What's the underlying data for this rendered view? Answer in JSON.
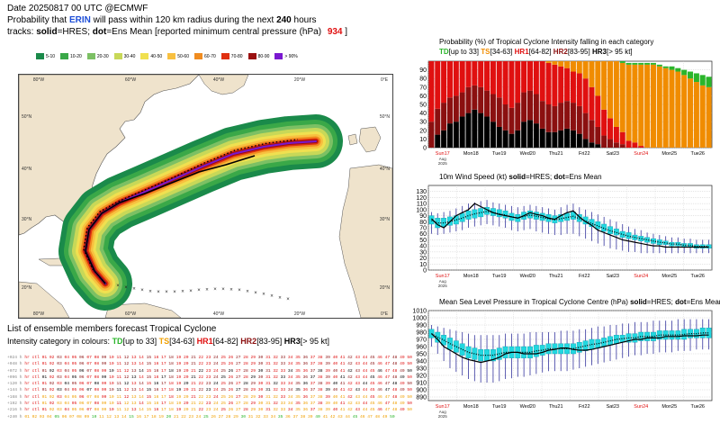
{
  "header": {
    "date_line": "Date 20250817 00 UTC   @ECMWF",
    "prob_prefix": "Probability that ",
    "storm_name": "ERIN",
    "prob_middle": " will pass within 120 km radius during the next ",
    "hours": "240",
    "prob_suffix": " hours",
    "tracks_prefix": "tracks: ",
    "solid_label": "solid",
    "solid_desc": "=HRES; ",
    "dot_label": "dot",
    "dot_desc": "=Ens Mean [reported minimum central pressure (hPa) ",
    "pressure": "934",
    "pressure_suffix": " ]"
  },
  "prob_legend": [
    {
      "label": "5-10",
      "color": "#1a8a4a"
    },
    {
      "label": "10-20",
      "color": "#3aa848"
    },
    {
      "label": "20-30",
      "color": "#7cc064"
    },
    {
      "label": "30-40",
      "color": "#c8d858"
    },
    {
      "label": "40-50",
      "color": "#f0e050"
    },
    {
      "label": "50-60",
      "color": "#f8c040"
    },
    {
      "label": "60-70",
      "color": "#f08c20"
    },
    {
      "label": "70-80",
      "color": "#e03010"
    },
    {
      "label": "80-90",
      "color": "#9a1010"
    },
    {
      "label": "> 90%",
      "color": "#7a18d0"
    }
  ],
  "map": {
    "lon_labels_top": [
      "80°W",
      "60°W",
      "40°W",
      "20°W",
      "0°E"
    ],
    "lon_labels_bottom": [
      "80°W",
      "60°W",
      "40°W",
      "20°W",
      "0°E"
    ],
    "lat_labels": [
      "50°N",
      "40°N",
      "30°N",
      "20°N"
    ]
  },
  "list": {
    "title": "List of ensemble members forecast Tropical Cyclone",
    "intensity_prefix": "Intensity category in colours: ",
    "td": "TD",
    "td_desc": "[up to 33] ",
    "ts": "TS",
    "ts_desc": "[34-63] ",
    "hr1": "HR1",
    "hr1_desc": "[64-82] ",
    "hr2": "HR2",
    "hr2_desc": "[83-95] ",
    "hr3": "HR3",
    "hr3_desc": "[> 95 kt]"
  },
  "ens_rows": [
    {
      "label": "+024 h",
      "hres": "hr",
      "ctl": "ctl",
      "first": 1,
      "last": 50
    },
    {
      "label": "+048 h",
      "hres": "hr",
      "ctl": "ctl",
      "first": 1,
      "last": 50
    },
    {
      "label": "+072 h",
      "hres": "hr",
      "ctl": "ctl",
      "first": 1,
      "last": 50
    },
    {
      "label": "+096 h",
      "hres": "hr",
      "ctl": "ctl",
      "first": 1,
      "last": 50
    },
    {
      "label": "+120 h",
      "hres": "hr",
      "ctl": "ctl",
      "first": 1,
      "last": 50
    },
    {
      "label": "+144 h",
      "hres": "hr",
      "ctl": "ctl",
      "first": 1,
      "last": 50
    },
    {
      "label": "+168 h",
      "hres": "hr",
      "ctl": "ctl",
      "first": 1,
      "last": 50
    },
    {
      "label": "+192 h",
      "hres": "hr",
      "ctl": "ctl",
      "first": 1,
      "last": 50
    },
    {
      "label": "+216 h",
      "hres": "hr",
      "ctl": "ctl",
      "first": 1,
      "last": 50
    },
    {
      "label": "+240 h",
      "hres": "",
      "ctl": "",
      "first": 1,
      "last": 50
    }
  ],
  "chart_data": [
    {
      "type": "bar",
      "title": "Probability (%) of Tropical Cyclone Intensity falling in each category",
      "legend": [
        {
          "name": "TD",
          "desc": "[up to 33]",
          "color": "#2ab52a"
        },
        {
          "name": "TS",
          "desc": "[34-63]",
          "color": "#f08c00"
        },
        {
          "name": "HR1",
          "desc": "[64-82]",
          "color": "#e01010"
        },
        {
          "name": "HR2",
          "desc": "[83-95]",
          "color": "#8b1010"
        },
        {
          "name": "HR3",
          "desc": "[> 95 kt]",
          "color": "#000000"
        }
      ],
      "ylim": [
        0,
        100
      ],
      "yticks": [
        0,
        10,
        20,
        30,
        40,
        50,
        60,
        70,
        80,
        90
      ],
      "x_labels": [
        "Sun17",
        "Mon18",
        "Tue19",
        "Wed20",
        "Thu21",
        "Fri22",
        "Sat23",
        "Sun24",
        "Mon25",
        "Tue26"
      ],
      "x_sublabels": [
        "Aug",
        "2025"
      ],
      "stacks": [
        {
          "hr3": 0,
          "hr2": 30,
          "hr1": 70,
          "ts": 0,
          "td": 0
        },
        {
          "hr3": 15,
          "hr2": 30,
          "hr1": 55,
          "ts": 0,
          "td": 0
        },
        {
          "hr3": 20,
          "hr2": 32,
          "hr1": 48,
          "ts": 0,
          "td": 0
        },
        {
          "hr3": 28,
          "hr2": 30,
          "hr1": 42,
          "ts": 0,
          "td": 0
        },
        {
          "hr3": 30,
          "hr2": 30,
          "hr1": 40,
          "ts": 0,
          "td": 0
        },
        {
          "hr3": 36,
          "hr2": 28,
          "hr1": 36,
          "ts": 0,
          "td": 0
        },
        {
          "hr3": 40,
          "hr2": 30,
          "hr1": 30,
          "ts": 0,
          "td": 0
        },
        {
          "hr3": 44,
          "hr2": 28,
          "hr1": 28,
          "ts": 0,
          "td": 0
        },
        {
          "hr3": 40,
          "hr2": 30,
          "hr1": 30,
          "ts": 0,
          "td": 0
        },
        {
          "hr3": 36,
          "hr2": 30,
          "hr1": 34,
          "ts": 0,
          "td": 0
        },
        {
          "hr3": 30,
          "hr2": 32,
          "hr1": 38,
          "ts": 0,
          "td": 0
        },
        {
          "hr3": 24,
          "hr2": 34,
          "hr1": 42,
          "ts": 0,
          "td": 0
        },
        {
          "hr3": 20,
          "hr2": 30,
          "hr1": 50,
          "ts": 0,
          "td": 0
        },
        {
          "hr3": 16,
          "hr2": 30,
          "hr1": 54,
          "ts": 0,
          "td": 0
        },
        {
          "hr3": 20,
          "hr2": 32,
          "hr1": 48,
          "ts": 0,
          "td": 0
        },
        {
          "hr3": 30,
          "hr2": 34,
          "hr1": 36,
          "ts": 0,
          "td": 0
        },
        {
          "hr3": 32,
          "hr2": 34,
          "hr1": 34,
          "ts": 0,
          "td": 0
        },
        {
          "hr3": 28,
          "hr2": 34,
          "hr1": 38,
          "ts": 0,
          "td": 0
        },
        {
          "hr3": 22,
          "hr2": 32,
          "hr1": 46,
          "ts": 0,
          "td": 0
        },
        {
          "hr3": 18,
          "hr2": 32,
          "hr1": 48,
          "ts": 2,
          "td": 0
        },
        {
          "hr3": 18,
          "hr2": 30,
          "hr1": 48,
          "ts": 4,
          "td": 0
        },
        {
          "hr3": 20,
          "hr2": 32,
          "hr1": 42,
          "ts": 6,
          "td": 0
        },
        {
          "hr3": 22,
          "hr2": 32,
          "hr1": 38,
          "ts": 8,
          "td": 0
        },
        {
          "hr3": 20,
          "hr2": 32,
          "hr1": 36,
          "ts": 12,
          "td": 0
        },
        {
          "hr3": 16,
          "hr2": 32,
          "hr1": 38,
          "ts": 14,
          "td": 0
        },
        {
          "hr3": 10,
          "hr2": 30,
          "hr1": 40,
          "ts": 20,
          "td": 0
        },
        {
          "hr3": 6,
          "hr2": 26,
          "hr1": 38,
          "ts": 30,
          "td": 0
        },
        {
          "hr3": 4,
          "hr2": 20,
          "hr1": 36,
          "ts": 40,
          "td": 0
        },
        {
          "hr3": 0,
          "hr2": 14,
          "hr1": 30,
          "ts": 56,
          "td": 0
        },
        {
          "hr3": 0,
          "hr2": 10,
          "hr1": 24,
          "ts": 66,
          "td": 0
        },
        {
          "hr3": 0,
          "hr2": 6,
          "hr1": 18,
          "ts": 76,
          "td": 0
        },
        {
          "hr3": 0,
          "hr2": 4,
          "hr1": 14,
          "ts": 80,
          "td": 2
        },
        {
          "hr3": 0,
          "hr2": 0,
          "hr1": 8,
          "ts": 88,
          "td": 2
        },
        {
          "hr3": 0,
          "hr2": 0,
          "hr1": 6,
          "ts": 90,
          "td": 2
        },
        {
          "hr3": 0,
          "hr2": 0,
          "hr1": 2,
          "ts": 94,
          "td": 2
        },
        {
          "hr3": 0,
          "hr2": 0,
          "hr1": 0,
          "ts": 96,
          "td": 2
        },
        {
          "hr3": 0,
          "hr2": 0,
          "hr1": 0,
          "ts": 96,
          "td": 2
        },
        {
          "hr3": 0,
          "hr2": 0,
          "hr1": 0,
          "ts": 94,
          "td": 2
        },
        {
          "hr3": 0,
          "hr2": 0,
          "hr1": 0,
          "ts": 92,
          "td": 2
        },
        {
          "hr3": 0,
          "hr2": 0,
          "hr1": 0,
          "ts": 90,
          "td": 4
        },
        {
          "hr3": 0,
          "hr2": 0,
          "hr1": 0,
          "ts": 88,
          "td": 4
        },
        {
          "hr3": 0,
          "hr2": 0,
          "hr1": 0,
          "ts": 84,
          "td": 6
        },
        {
          "hr3": 0,
          "hr2": 0,
          "hr1": 0,
          "ts": 80,
          "td": 8
        },
        {
          "hr3": 0,
          "hr2": 0,
          "hr1": 0,
          "ts": 76,
          "td": 10
        },
        {
          "hr3": 0,
          "hr2": 0,
          "hr1": 0,
          "ts": 72,
          "td": 12
        },
        {
          "hr3": 0,
          "hr2": 0,
          "hr1": 0,
          "ts": 70,
          "td": 12
        }
      ]
    },
    {
      "type": "line",
      "title_prefix": "10m Wind Speed (kt) ",
      "solid_label": "solid",
      "solid_desc": "=HRES; ",
      "dot_label": "dot",
      "dot_desc": "=Ens Mean",
      "ylim": [
        0,
        140
      ],
      "yticks": [
        0,
        10,
        20,
        30,
        40,
        50,
        60,
        70,
        80,
        90,
        100,
        110,
        120,
        130
      ],
      "x_labels": [
        "Sun17",
        "Mon18",
        "Tue19",
        "Wed20",
        "Thu21",
        "Fri22",
        "Sat23",
        "Sun24",
        "Mon25",
        "Tue26"
      ],
      "x_sublabels": [
        "Aug",
        "2025"
      ],
      "box_q1": [
        76,
        70,
        72,
        74,
        76,
        80,
        84,
        86,
        88,
        92,
        90,
        88,
        86,
        82,
        80,
        84,
        86,
        84,
        82,
        80,
        78,
        80,
        82,
        84,
        80,
        76,
        72,
        68,
        64,
        60,
        58,
        54,
        52,
        50,
        48,
        46,
        44,
        42,
        42,
        40,
        40,
        38,
        38,
        36,
        36,
        36
      ],
      "box_q3": [
        90,
        86,
        86,
        88,
        90,
        94,
        98,
        100,
        102,
        104,
        102,
        100,
        98,
        94,
        92,
        96,
        98,
        96,
        94,
        92,
        90,
        92,
        94,
        96,
        92,
        88,
        84,
        80,
        76,
        72,
        68,
        64,
        62,
        58,
        56,
        54,
        52,
        50,
        48,
        46,
        46,
        44,
        44,
        42,
        42,
        42
      ],
      "whisk_lo": [
        60,
        58,
        60,
        62,
        64,
        66,
        70,
        72,
        74,
        76,
        74,
        72,
        70,
        66,
        64,
        66,
        68,
        64,
        62,
        60,
        58,
        58,
        60,
        60,
        56,
        52,
        48,
        44,
        40,
        36,
        34,
        32,
        30,
        30,
        28,
        28,
        28,
        28,
        28,
        28,
        28,
        28,
        28,
        28,
        28,
        28
      ],
      "whisk_hi": [
        96,
        94,
        96,
        98,
        102,
        106,
        110,
        112,
        114,
        116,
        112,
        110,
        108,
        106,
        104,
        106,
        108,
        106,
        104,
        102,
        100,
        104,
        108,
        110,
        104,
        100,
        96,
        92,
        88,
        84,
        80,
        76,
        72,
        68,
        66,
        62,
        60,
        58,
        56,
        54,
        54,
        52,
        52,
        50,
        50,
        50
      ],
      "hres": [
        85,
        75,
        70,
        80,
        90,
        95,
        100,
        110,
        105,
        100,
        95,
        92,
        90,
        88,
        86,
        90,
        95,
        92,
        90,
        86,
        84,
        90,
        95,
        98,
        88,
        80,
        74,
        66,
        62,
        58,
        54,
        50,
        48,
        46,
        44,
        42,
        40,
        40,
        38,
        38,
        38,
        38,
        38,
        38,
        38,
        38
      ],
      "ens_mean": [
        82,
        78,
        78,
        80,
        83,
        86,
        90,
        93,
        95,
        97,
        95,
        93,
        91,
        88,
        86,
        89,
        91,
        89,
        87,
        85,
        83,
        85,
        87,
        89,
        85,
        81,
        77,
        73,
        69,
        65,
        62,
        59,
        56,
        54,
        52,
        50,
        48,
        46,
        45,
        43,
        43,
        41,
        41,
        39,
        39,
        39
      ]
    },
    {
      "type": "line",
      "title_prefix": "Mean Sea Level Pressure in Tropical Cyclone Centre (hPa) ",
      "solid_label": "solid",
      "solid_desc": "=HRES; ",
      "dot_label": "dot",
      "dot_desc": "=Ens Mean",
      "ylim": [
        885,
        1010
      ],
      "yticks": [
        890,
        900,
        910,
        920,
        930,
        940,
        950,
        960,
        970,
        980,
        990,
        1000,
        1010
      ],
      "x_labels": [
        "Sun17",
        "Mon18",
        "Tue19",
        "Wed20",
        "Thu21",
        "Fri22",
        "Sat23",
        "Sun24",
        "Mon25",
        "Tue26"
      ],
      "x_sublabels": [
        "Aug",
        "2025"
      ],
      "box_q1": [
        972,
        966,
        962,
        956,
        952,
        948,
        944,
        942,
        940,
        940,
        940,
        942,
        944,
        944,
        944,
        944,
        944,
        946,
        948,
        950,
        950,
        950,
        950,
        950,
        952,
        954,
        956,
        958,
        960,
        962,
        964,
        966,
        966,
        966,
        968,
        968,
        968,
        970,
        970,
        970,
        970,
        970,
        972,
        972,
        972,
        972
      ],
      "box_q3": [
        984,
        980,
        976,
        972,
        968,
        964,
        960,
        958,
        956,
        956,
        956,
        958,
        960,
        960,
        960,
        960,
        960,
        962,
        962,
        964,
        964,
        964,
        964,
        964,
        966,
        968,
        970,
        970,
        972,
        974,
        976,
        976,
        978,
        978,
        980,
        980,
        980,
        982,
        982,
        982,
        982,
        984,
        984,
        984,
        986,
        986
      ],
      "whisk_lo": [
        960,
        950,
        940,
        930,
        925,
        920,
        915,
        912,
        910,
        910,
        910,
        912,
        915,
        916,
        918,
        918,
        920,
        922,
        924,
        926,
        926,
        926,
        926,
        928,
        930,
        932,
        934,
        936,
        938,
        940,
        942,
        944,
        946,
        948,
        948,
        950,
        950,
        952,
        952,
        952,
        954,
        954,
        954,
        956,
        956,
        956
      ],
      "whisk_hi": [
        990,
        988,
        986,
        984,
        982,
        980,
        978,
        976,
        976,
        976,
        976,
        976,
        978,
        978,
        978,
        978,
        980,
        980,
        980,
        980,
        980,
        982,
        982,
        982,
        984,
        984,
        986,
        988,
        988,
        990,
        990,
        992,
        992,
        994,
        994,
        994,
        996,
        996,
        996,
        996,
        998,
        998,
        998,
        998,
        998,
        998
      ],
      "hres": [
        978,
        970,
        960,
        955,
        950,
        945,
        942,
        940,
        938,
        940,
        942,
        945,
        950,
        952,
        952,
        950,
        950,
        950,
        952,
        955,
        956,
        958,
        958,
        956,
        955,
        955,
        956,
        958,
        960,
        962,
        964,
        966,
        968,
        970,
        970,
        972,
        972,
        972,
        974,
        974,
        974,
        975,
        975,
        975,
        976,
        976
      ],
      "ens_mean": [
        978,
        973,
        969,
        964,
        960,
        956,
        952,
        950,
        948,
        948,
        948,
        950,
        952,
        952,
        952,
        952,
        952,
        954,
        955,
        957,
        957,
        957,
        957,
        957,
        959,
        961,
        963,
        964,
        966,
        968,
        970,
        971,
        972,
        972,
        974,
        974,
        974,
        976,
        976,
        976,
        976,
        977,
        978,
        978,
        979,
        979
      ]
    }
  ]
}
